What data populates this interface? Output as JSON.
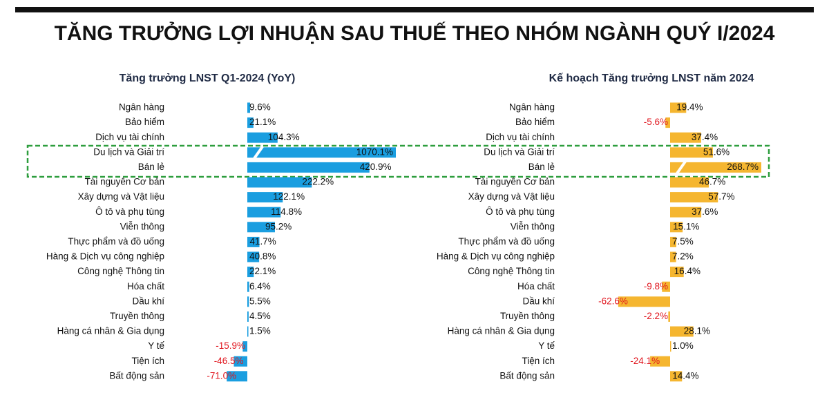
{
  "title": "TĂNG TRƯỞNG LỢI NHUẬN SAU THUẾ THEO NHÓM NGÀNH QUÝ I/2024",
  "chart_data": [
    {
      "type": "hbar",
      "title": "Tăng trưởng LNST Q1-2024 (YoY)",
      "color": "#1a9ee0",
      "negative_label_color": "#e0161e",
      "categories": [
        "Ngân hàng",
        "Bảo hiểm",
        "Dịch vụ tài chính",
        "Du lịch và Giải trí",
        "Bán lẻ",
        "Tài nguyên Cơ bản",
        "Xây dựng và Vật liệu",
        "Ô tô và phụ tùng",
        "Viễn thông",
        "Thực phẩm và đồ uống",
        "Hàng & Dịch vụ công nghiệp",
        "Công nghệ Thông tin",
        "Hóa chất",
        "Dầu khí",
        "Truyền thông",
        "Hàng cá nhân & Gia dụng",
        "Y tế",
        "Tiện ích",
        "Bất động sản"
      ],
      "values": [
        9.6,
        21.1,
        104.3,
        1070.1,
        420.9,
        222.2,
        122.1,
        114.8,
        95.2,
        41.7,
        40.8,
        22.1,
        6.4,
        5.5,
        4.5,
        1.5,
        -15.9,
        -46.5,
        -71.0
      ],
      "value_labels": [
        "9.6%",
        "21.1%",
        "104.3%",
        "1070.1%",
        "420.9%",
        "222.2%",
        "122.1%",
        "114.8%",
        "95.2%",
        "41.7%",
        "40.8%",
        "22.1%",
        "6.4%",
        "5.5%",
        "4.5%",
        "1.5%",
        "-15.9%",
        "-46.5%",
        "-71.0%"
      ]
    },
    {
      "type": "hbar",
      "title": "Kế hoạch Tăng trưởng LNST năm 2024",
      "color": "#f5b630",
      "negative_label_color": "#e0161e",
      "categories": [
        "Ngân hàng",
        "Bảo hiểm",
        "Dịch vụ tài chính",
        "Du lịch và Giải trí",
        "Bán lẻ",
        "Tài nguyên Cơ bản",
        "Xây dựng và Vật liệu",
        "Ô tô và phụ tùng",
        "Viễn thông",
        "Thực phẩm và đồ uống",
        "Hàng & Dịch vụ công nghiệp",
        "Công nghệ Thông tin",
        "Hóa chất",
        "Dầu khí",
        "Truyền thông",
        "Hàng cá nhân & Gia dụng",
        "Y tế",
        "Tiện ích",
        "Bất động sản"
      ],
      "values": [
        19.4,
        -5.6,
        37.4,
        51.6,
        268.7,
        46.7,
        57.7,
        37.6,
        15.1,
        7.5,
        7.2,
        16.4,
        -9.8,
        -62.6,
        -2.2,
        28.1,
        1.0,
        -24.1,
        14.4
      ],
      "value_labels": [
        "19.4%",
        "-5.6%",
        "37.4%",
        "51.6%",
        "268.7%",
        "46.7%",
        "57.7%",
        "37.6%",
        "15.1%",
        "7.5%",
        "7.2%",
        "16.4%",
        "-9.8%",
        "-62.6%",
        "-2.2%",
        "28.1%",
        "1.0%",
        "-24.1%",
        "14.4%"
      ]
    }
  ]
}
